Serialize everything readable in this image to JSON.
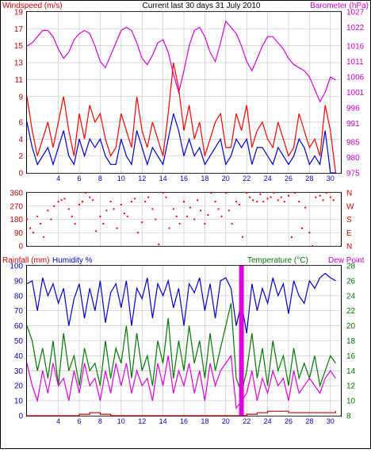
{
  "header": {
    "left_label": "Windspeed (m/s)",
    "title": "Current last 30 days 31 July 2010",
    "right_label": "Barometer (hPa)"
  },
  "bottom_header": {
    "rainfall_label": "Rainfall (mm)",
    "humidity_label": "Humidity %",
    "temperature_label": "Temperature (°C)",
    "dewpoint_label": "Dew Point"
  },
  "colors": {
    "windspeed": "#0000cc",
    "gust": "#ff0000",
    "barometer": "#dd00dd",
    "direction": "#ff0000",
    "humidity": "#0000cc",
    "temperature": "#007700",
    "dewpoint": "#dd00dd",
    "rainfall": "#cc0000",
    "axis_text_left": "#cc0000",
    "axis_text_right": "#cc00cc",
    "axis_text_blue": "#0000cc",
    "axis_text_green": "#007700",
    "grid": "#c0c0c0",
    "border": "#000000"
  },
  "x_ticks": [
    "4",
    "6",
    "8",
    "10",
    "12",
    "14",
    "16",
    "18",
    "20",
    "22",
    "24",
    "26",
    "28",
    "30"
  ],
  "chart_data": [
    {
      "type": "line",
      "panel": "wind-barometer",
      "title": "Current last 30 days 31 July 2010",
      "x_range_days": [
        1,
        31
      ],
      "y_left": {
        "label": "Windspeed (m/s)",
        "ylim": [
          0,
          19
        ],
        "ticks": [
          0,
          2,
          4,
          6,
          9,
          11,
          13,
          15,
          17,
          19
        ]
      },
      "y_right": {
        "label": "Barometer (hPa)",
        "ylim": [
          975,
          1027
        ],
        "ticks": [
          975,
          980,
          985,
          991,
          996,
          1001,
          1006,
          1011,
          1016,
          1022,
          1027
        ]
      },
      "series": [
        {
          "key": "barometer",
          "axis": "right",
          "x": [
            1,
            1.5,
            2,
            2.5,
            3,
            3.5,
            4,
            4.5,
            5,
            5.5,
            6,
            6.5,
            7,
            7.5,
            8,
            8.5,
            9,
            9.5,
            10,
            10.5,
            11,
            11.5,
            12,
            12.5,
            13,
            13.5,
            14,
            14.5,
            15,
            15.5,
            16,
            16.5,
            17,
            17.5,
            18,
            18.5,
            19,
            19.5,
            20,
            20.5,
            21,
            21.5,
            22,
            22.5,
            23,
            23.5,
            24,
            24.5,
            25,
            25.5,
            26,
            26.5,
            27,
            27.5,
            28,
            28.5,
            29,
            29.5,
            30,
            30.5
          ],
          "values": [
            1016,
            1017,
            1019,
            1021,
            1021,
            1019,
            1015,
            1012,
            1014,
            1018,
            1020,
            1021,
            1020,
            1016,
            1011,
            1009,
            1013,
            1017,
            1021,
            1022,
            1021,
            1017,
            1012,
            1010,
            1013,
            1017,
            1018,
            1014,
            1007,
            1001,
            1008,
            1016,
            1021,
            1022,
            1019,
            1014,
            1011,
            1017,
            1024,
            1022,
            1020,
            1016,
            1011,
            1008,
            1012,
            1016,
            1019,
            1019,
            1017,
            1015,
            1012,
            1010,
            1009,
            1008,
            1006,
            1002,
            998,
            1001,
            1006,
            1005
          ]
        },
        {
          "key": "gust",
          "axis": "left",
          "x": [
            1,
            1.5,
            2,
            2.5,
            3,
            3.5,
            4,
            4.5,
            5,
            5.5,
            6,
            6.5,
            7,
            7.5,
            8,
            8.5,
            9,
            9.5,
            10,
            10.5,
            11,
            11.5,
            12,
            12.5,
            13,
            13.5,
            14,
            14.5,
            15,
            15.5,
            16,
            16.5,
            17,
            17.5,
            18,
            18.5,
            19,
            19.5,
            20,
            20.5,
            21,
            21.5,
            22,
            22.5,
            23,
            23.5,
            24,
            24.5,
            25,
            25.5,
            26,
            26.5,
            27,
            27.5,
            28,
            28.5,
            29,
            29.5,
            30,
            30.5
          ],
          "values": [
            9,
            5,
            2,
            4,
            6,
            3,
            6,
            9,
            5,
            2,
            7,
            4,
            8,
            6,
            7,
            4,
            2,
            3,
            7,
            5,
            3,
            9,
            5,
            3,
            6,
            4,
            2,
            7,
            13,
            10,
            5,
            8,
            4,
            6,
            2,
            4,
            6,
            7,
            3,
            3,
            7,
            5,
            8,
            3,
            5,
            6,
            4,
            3,
            6,
            4,
            2,
            3,
            7,
            5,
            3,
            4,
            2,
            8,
            5,
            0
          ]
        },
        {
          "key": "windspeed",
          "axis": "left",
          "x": [
            1,
            1.5,
            2,
            2.5,
            3,
            3.5,
            4,
            4.5,
            5,
            5.5,
            6,
            6.5,
            7,
            7.5,
            8,
            8.5,
            9,
            9.5,
            10,
            10.5,
            11,
            11.5,
            12,
            12.5,
            13,
            13.5,
            14,
            14.5,
            15,
            15.5,
            16,
            16.5,
            17,
            17.5,
            18,
            18.5,
            19,
            19.5,
            20,
            20.5,
            21,
            21.5,
            22,
            22.5,
            23,
            23.5,
            24,
            24.5,
            25,
            25.5,
            26,
            26.5,
            27,
            27.5,
            28,
            28.5,
            29,
            29.5,
            30,
            30.5
          ],
          "values": [
            6,
            3,
            1,
            2,
            3,
            1,
            3,
            5,
            2,
            1,
            4,
            2,
            4,
            3,
            4,
            2,
            1,
            1,
            4,
            2,
            1,
            5,
            3,
            1,
            3,
            2,
            1,
            4,
            7,
            5,
            2,
            4,
            2,
            3,
            1,
            2,
            3,
            4,
            1,
            2,
            4,
            3,
            4,
            1,
            3,
            3,
            2,
            1,
            3,
            2,
            1,
            2,
            4,
            3,
            1,
            2,
            1,
            5,
            0,
            0
          ]
        }
      ]
    },
    {
      "type": "scatter",
      "panel": "wind-direction",
      "x_range_days": [
        1,
        31
      ],
      "y_left": {
        "ylim": [
          0,
          360
        ],
        "ticks": [
          0,
          90,
          180,
          270,
          360
        ]
      },
      "y_right_labels": [
        "N",
        "W",
        "S",
        "E",
        "N"
      ],
      "series": [
        {
          "key": "direction",
          "x": [
            1,
            1.3,
            1.6,
            2,
            2.3,
            2.6,
            3,
            3.3,
            3.6,
            4,
            4.3,
            4.6,
            5,
            5.3,
            5.6,
            6,
            6.3,
            6.6,
            7,
            7.3,
            7.6,
            8,
            8.3,
            8.6,
            9,
            9.3,
            9.6,
            10,
            10.3,
            10.6,
            11,
            11.3,
            11.6,
            12,
            12.3,
            12.6,
            13,
            13.3,
            13.6,
            14,
            14.3,
            14.6,
            15,
            15.3,
            15.6,
            16,
            16.3,
            16.6,
            17,
            17.3,
            17.6,
            18,
            18.3,
            18.6,
            19,
            19.3,
            19.6,
            20,
            20.3,
            20.6,
            21,
            21.3,
            21.6,
            22,
            22.3,
            22.6,
            23,
            23.3,
            23.6,
            24,
            24.3,
            24.6,
            25,
            25.3,
            25.6,
            26,
            26.3,
            26.6,
            27,
            27.3,
            27.6,
            28,
            28.3,
            28.6,
            29,
            29.3,
            29.6,
            30,
            30.3
          ],
          "values": [
            180,
            120,
            90,
            200,
            150,
            60,
            240,
            180,
            270,
            300,
            310,
            320,
            250,
            200,
            150,
            280,
            300,
            360,
            330,
            310,
            100,
            200,
            150,
            240,
            300,
            250,
            120,
            280,
            220,
            200,
            300,
            320,
            90,
            160,
            300,
            330,
            250,
            180,
            10,
            360,
            330,
            120,
            250,
            200,
            150,
            300,
            200,
            260,
            180,
            310,
            240,
            150,
            210,
            360,
            300,
            250,
            200,
            360,
            240,
            150,
            300,
            280,
            60,
            360,
            330,
            310,
            300,
            350,
            300,
            320,
            330,
            360,
            310,
            330,
            300,
            340,
            60,
            360,
            300,
            120,
            260,
            90,
            0,
            330,
            340,
            310,
            360,
            330,
            310
          ]
        }
      ]
    },
    {
      "type": "line",
      "panel": "temperature-humidity-rain",
      "x_range_days": [
        1,
        31
      ],
      "y_left": {
        "label": "Rainfall (mm) Humidity %",
        "ylim": [
          0,
          100
        ],
        "ticks": [
          0,
          10,
          20,
          30,
          40,
          50,
          60,
          70,
          80,
          90,
          100
        ]
      },
      "y_right": {
        "label": "Temperature (°C) Dew Point",
        "ylim": [
          8,
          28
        ],
        "ticks": [
          8,
          10,
          12,
          14,
          16,
          18,
          20,
          22,
          24,
          26,
          28
        ]
      },
      "series": [
        {
          "key": "humidity",
          "axis": "left",
          "x": [
            1,
            1.5,
            2,
            2.5,
            3,
            3.5,
            4,
            4.5,
            5,
            5.5,
            6,
            6.5,
            7,
            7.5,
            8,
            8.5,
            9,
            9.5,
            10,
            10.5,
            11,
            11.5,
            12,
            12.5,
            13,
            13.5,
            14,
            14.5,
            15,
            15.5,
            16,
            16.5,
            17,
            17.5,
            18,
            18.5,
            19,
            19.5,
            20,
            20.5,
            21,
            21.5,
            22,
            22.5,
            23,
            23.5,
            24,
            24.5,
            25,
            25.5,
            26,
            26.5,
            27,
            27.5,
            28,
            28.5,
            29,
            29.5,
            30,
            30.5
          ],
          "values": [
            88,
            90,
            70,
            92,
            80,
            88,
            75,
            85,
            60,
            78,
            88,
            65,
            85,
            70,
            90,
            62,
            82,
            88,
            72,
            90,
            60,
            85,
            78,
            92,
            65,
            88,
            80,
            90,
            72,
            85,
            60,
            88,
            82,
            92,
            70,
            88,
            65,
            90,
            92,
            85,
            60,
            75,
            55,
            88,
            70,
            85,
            75,
            92,
            80,
            88,
            68,
            90,
            80,
            75,
            90,
            85,
            92,
            95,
            92,
            90
          ]
        },
        {
          "key": "temperature",
          "axis": "right",
          "x": [
            1,
            1.5,
            2,
            2.5,
            3,
            3.5,
            4,
            4.5,
            5,
            5.5,
            6,
            6.5,
            7,
            7.5,
            8,
            8.5,
            9,
            9.5,
            10,
            10.5,
            11,
            11.5,
            12,
            12.5,
            13,
            13.5,
            14,
            14.5,
            15,
            15.5,
            16,
            16.5,
            17,
            17.5,
            18,
            18.5,
            19,
            19.5,
            20,
            20.5,
            21,
            21.5,
            22,
            22.5,
            23,
            23.5,
            24,
            24.5,
            25,
            25.5,
            26,
            26.5,
            27,
            27.5,
            28,
            28.5,
            29,
            29.5,
            30,
            30.5
          ],
          "values": [
            20,
            18,
            14,
            17,
            13,
            18,
            12,
            19,
            14,
            16,
            12,
            17,
            14,
            15,
            12,
            18,
            13,
            17,
            15,
            20,
            13,
            19,
            14,
            16,
            12,
            18,
            15,
            21,
            13,
            18,
            14,
            20,
            15,
            18,
            13,
            19,
            14,
            17,
            20,
            23,
            13,
            11,
            14,
            19,
            13,
            17,
            12,
            18,
            14,
            16,
            12,
            17,
            13,
            15,
            13,
            16,
            12,
            14,
            16,
            15
          ]
        },
        {
          "key": "dewpoint",
          "axis": "right",
          "x": [
            1,
            1.5,
            2,
            2.5,
            3,
            3.5,
            4,
            4.5,
            5,
            5.5,
            6,
            6.5,
            7,
            7.5,
            8,
            8.5,
            9,
            9.5,
            10,
            10.5,
            11,
            11.5,
            12,
            12.5,
            13,
            13.5,
            14,
            14.5,
            15,
            15.5,
            16,
            16.5,
            17,
            17.5,
            18,
            18.5,
            19,
            19.5,
            20,
            20.5,
            21,
            21.5,
            22,
            22.5,
            23,
            23.5,
            24,
            24.5,
            25,
            25.5,
            26,
            26.5,
            27,
            27.5,
            28,
            28.5,
            29,
            29.5,
            30,
            30.5
          ],
          "values": [
            15,
            12,
            10,
            14,
            11,
            15,
            12,
            13,
            10,
            14,
            11,
            15,
            12,
            13,
            10,
            14,
            11,
            15,
            12,
            15,
            11,
            14,
            12,
            13,
            10,
            15,
            12,
            16,
            11,
            14,
            12,
            15,
            11,
            14,
            10,
            15,
            12,
            14,
            15,
            16,
            9,
            10,
            11,
            14,
            10,
            13,
            11,
            14,
            12,
            13,
            10,
            14,
            11,
            12,
            13,
            12,
            11,
            13,
            14,
            13
          ]
        },
        {
          "key": "rainfall",
          "axis": "left",
          "x": [
            1,
            2,
            3,
            4,
            5,
            6,
            7,
            8,
            9,
            10,
            11,
            12,
            13,
            14,
            15,
            16,
            17,
            18,
            19,
            20,
            21,
            22,
            23,
            24,
            25,
            26,
            27,
            28,
            29,
            30,
            30.5
          ],
          "values": [
            0,
            0,
            0,
            0,
            0,
            1,
            2,
            1,
            0,
            0,
            0,
            0,
            0,
            0,
            0,
            0,
            0,
            0,
            0,
            0,
            0,
            1,
            2,
            3,
            3,
            2,
            2,
            2,
            2,
            2,
            3
          ]
        }
      ],
      "spike_day": 21.5
    }
  ]
}
